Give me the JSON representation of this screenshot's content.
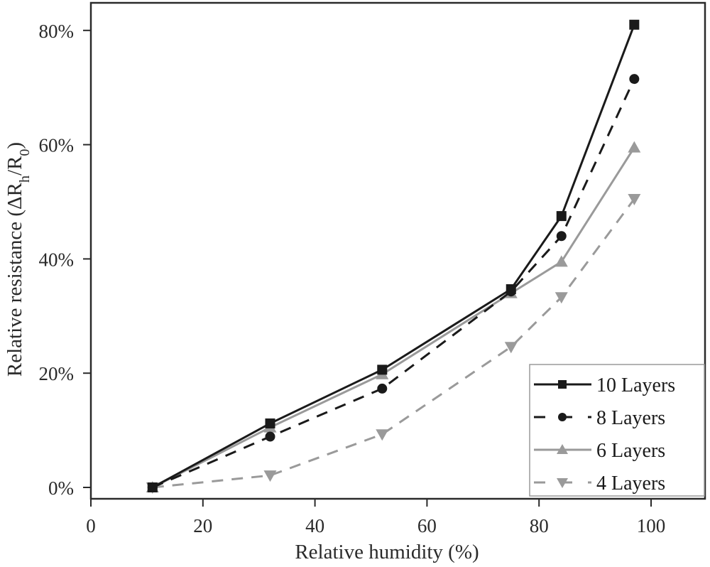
{
  "chart_data": {
    "type": "line",
    "title": "",
    "xlabel": "Relative humidity (%)",
    "ylabel": "Relative resistance (ΔR_h/R_0)",
    "ylabel_parts": {
      "main": "Relative resistance (ΔR",
      "sub1": "h",
      "mid": "/R",
      "sub2": "0",
      "end": ")"
    },
    "xlim": [
      0,
      110
    ],
    "ylim": [
      -2,
      85
    ],
    "xticks": [
      0,
      20,
      40,
      60,
      80,
      100
    ],
    "xtick_labels": [
      "0",
      "20",
      "40",
      "60",
      "80",
      "100"
    ],
    "yticks": [
      0,
      20,
      40,
      60,
      80
    ],
    "ytick_labels": [
      "0%",
      "20%",
      "40%",
      "60%",
      "80%"
    ],
    "grid": false,
    "legend_position": "lower right",
    "x": [
      11,
      32,
      52,
      75,
      84,
      97
    ],
    "series": [
      {
        "name": "10 Layers",
        "values": [
          0,
          11.2,
          20.6,
          34.7,
          47.5,
          81.0
        ],
        "color": "#1a1a1a",
        "dash": "solid",
        "marker": "square"
      },
      {
        "name": "8 Layers",
        "values": [
          0,
          8.9,
          17.3,
          34.3,
          44.0,
          71.5
        ],
        "color": "#1a1a1a",
        "dash": "dashed",
        "marker": "circle"
      },
      {
        "name": "6 Layers",
        "values": [
          0,
          10.5,
          19.8,
          34.0,
          39.5,
          59.5
        ],
        "color": "#9a9a9a",
        "dash": "solid",
        "marker": "triangle-up"
      },
      {
        "name": "4 Layers",
        "values": [
          0,
          2.1,
          9.3,
          24.6,
          33.3,
          50.5
        ],
        "color": "#9a9a9a",
        "dash": "dashed",
        "marker": "triangle-down"
      }
    ]
  }
}
